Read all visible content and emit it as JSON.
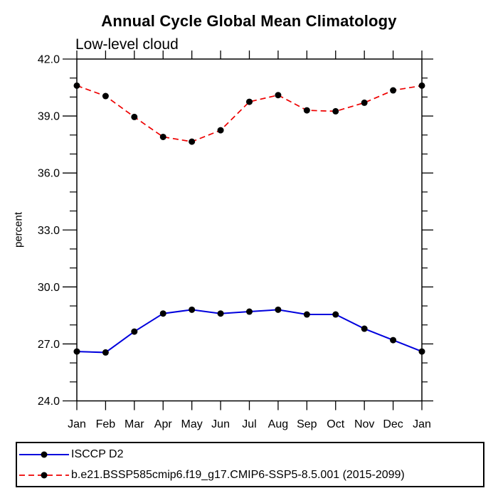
{
  "page": {
    "background": "#ffffff"
  },
  "chart_data": {
    "type": "line",
    "title": "Annual Cycle Global Mean Climatology",
    "subtitle": "Low-level cloud",
    "ylabel": "percent",
    "xlabel": "",
    "categories": [
      "Jan",
      "Feb",
      "Mar",
      "Apr",
      "May",
      "Jun",
      "Jul",
      "Aug",
      "Sep",
      "Oct",
      "Nov",
      "Dec",
      "Jan"
    ],
    "ylim": [
      24.0,
      42.0
    ],
    "y_ticks": [
      24.0,
      27.0,
      30.0,
      33.0,
      36.0,
      39.0,
      42.0
    ],
    "y_tick_labels": [
      "24.0",
      "27.0",
      "30.0",
      "33.0",
      "36.0",
      "39.0",
      "42.0"
    ],
    "y_minor_step": 1.0,
    "grid": false,
    "legend_position": "bottom",
    "marker_color": "#000000",
    "axis_color": "#000000",
    "series": [
      {
        "name": "ISCCP D2",
        "color": "#0000dd",
        "line_style": "solid",
        "marker": "filled-circle",
        "values": [
          26.6,
          26.55,
          27.65,
          28.6,
          28.8,
          28.6,
          28.7,
          28.8,
          28.55,
          28.55,
          27.8,
          27.2,
          26.6
        ]
      },
      {
        "name": "b.e21.BSSP585cmip6.f19_g17.CMIP6-SSP5-8.5.001 (2015-2099)",
        "color": "#ee0000",
        "line_style": "dashed",
        "marker": "filled-circle",
        "values": [
          40.6,
          40.05,
          38.95,
          37.9,
          37.65,
          38.25,
          39.75,
          40.1,
          39.3,
          39.25,
          39.7,
          40.35,
          40.6
        ]
      }
    ]
  }
}
